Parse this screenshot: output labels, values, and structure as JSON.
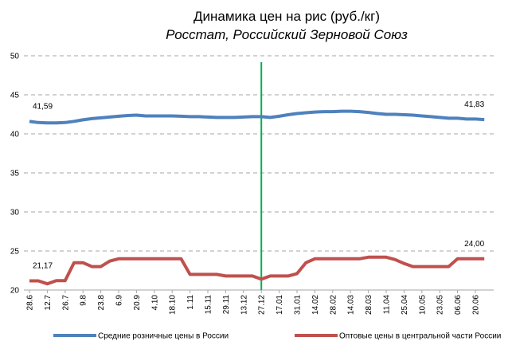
{
  "chart_data": {
    "type": "line",
    "title": "Динамика цен на рис (руб./кг)",
    "subtitle": "Росстат, Российский Зерновой Союз",
    "categories": [
      "28.6",
      null,
      "12.7",
      null,
      "26.7",
      null,
      "9.8",
      null,
      "23.8",
      null,
      "6.9",
      null,
      "20.9",
      null,
      "4.10",
      null,
      "18.10",
      null,
      "1.11",
      null,
      "15.11",
      null,
      "29.11",
      null,
      "13.12",
      null,
      "27.12",
      null,
      "17.01",
      null,
      "31.01",
      null,
      "14.02",
      null,
      "28.02",
      null,
      "14.03",
      null,
      "28.03",
      null,
      "11.04",
      null,
      "25.04",
      null,
      "10.05",
      null,
      "23.05",
      null,
      "06.06",
      null,
      "20.06",
      null
    ],
    "series": [
      {
        "name": "Средние розничные цены в России",
        "color": "#4f81bd",
        "values": [
          41.59,
          41.45,
          41.4,
          41.4,
          41.45,
          41.6,
          41.8,
          41.95,
          42.05,
          42.15,
          42.25,
          42.35,
          42.4,
          42.3,
          42.3,
          42.3,
          42.3,
          42.25,
          42.2,
          42.2,
          42.15,
          42.1,
          42.1,
          42.1,
          42.15,
          42.2,
          42.2,
          42.1,
          42.25,
          42.45,
          42.6,
          42.7,
          42.8,
          42.85,
          42.85,
          42.9,
          42.9,
          42.85,
          42.75,
          42.6,
          42.5,
          42.5,
          42.45,
          42.4,
          42.3,
          42.2,
          42.1,
          42.0,
          42.0,
          41.9,
          41.9,
          41.83
        ],
        "value_labels": [
          "41,59",
          null,
          null,
          null,
          null,
          null,
          null,
          null,
          null,
          null,
          null,
          null,
          null,
          null,
          null,
          null,
          null,
          null,
          null,
          null,
          null,
          null,
          null,
          null,
          null,
          null,
          null,
          null,
          null,
          null,
          null,
          null,
          null,
          null,
          null,
          null,
          null,
          null,
          null,
          null,
          null,
          null,
          null,
          null,
          null,
          null,
          null,
          null,
          null,
          null,
          null,
          "41,83"
        ]
      },
      {
        "name": "Оптовые цены в центральной части России",
        "color": "#c0504d",
        "values": [
          21.17,
          21.17,
          20.8,
          21.2,
          21.2,
          23.5,
          23.5,
          23.0,
          23.0,
          23.7,
          24,
          24,
          24,
          24,
          24,
          24,
          24,
          24,
          22,
          22,
          22,
          22,
          21.8,
          21.8,
          21.8,
          21.8,
          21.4,
          21.8,
          21.8,
          21.8,
          22.1,
          23.5,
          24,
          24,
          24,
          24,
          24,
          24,
          24.2,
          24.2,
          24.2,
          23.9,
          23.4,
          23,
          23,
          23,
          23,
          23,
          24,
          24,
          24,
          24.0
        ],
        "value_labels": [
          "21,17",
          null,
          null,
          null,
          null,
          null,
          null,
          null,
          null,
          null,
          null,
          null,
          null,
          null,
          null,
          null,
          null,
          null,
          null,
          null,
          null,
          null,
          null,
          null,
          null,
          null,
          null,
          null,
          null,
          null,
          null,
          null,
          null,
          null,
          null,
          null,
          null,
          null,
          null,
          null,
          null,
          null,
          null,
          null,
          null,
          null,
          null,
          null,
          null,
          null,
          null,
          "24,00"
        ]
      }
    ],
    "ylim": [
      20,
      50
    ],
    "yticks": [
      20,
      25,
      30,
      35,
      40,
      45,
      50
    ],
    "grid": true,
    "vline_at": "27.12",
    "vline_color": "#00b050",
    "legend": "bottom"
  }
}
